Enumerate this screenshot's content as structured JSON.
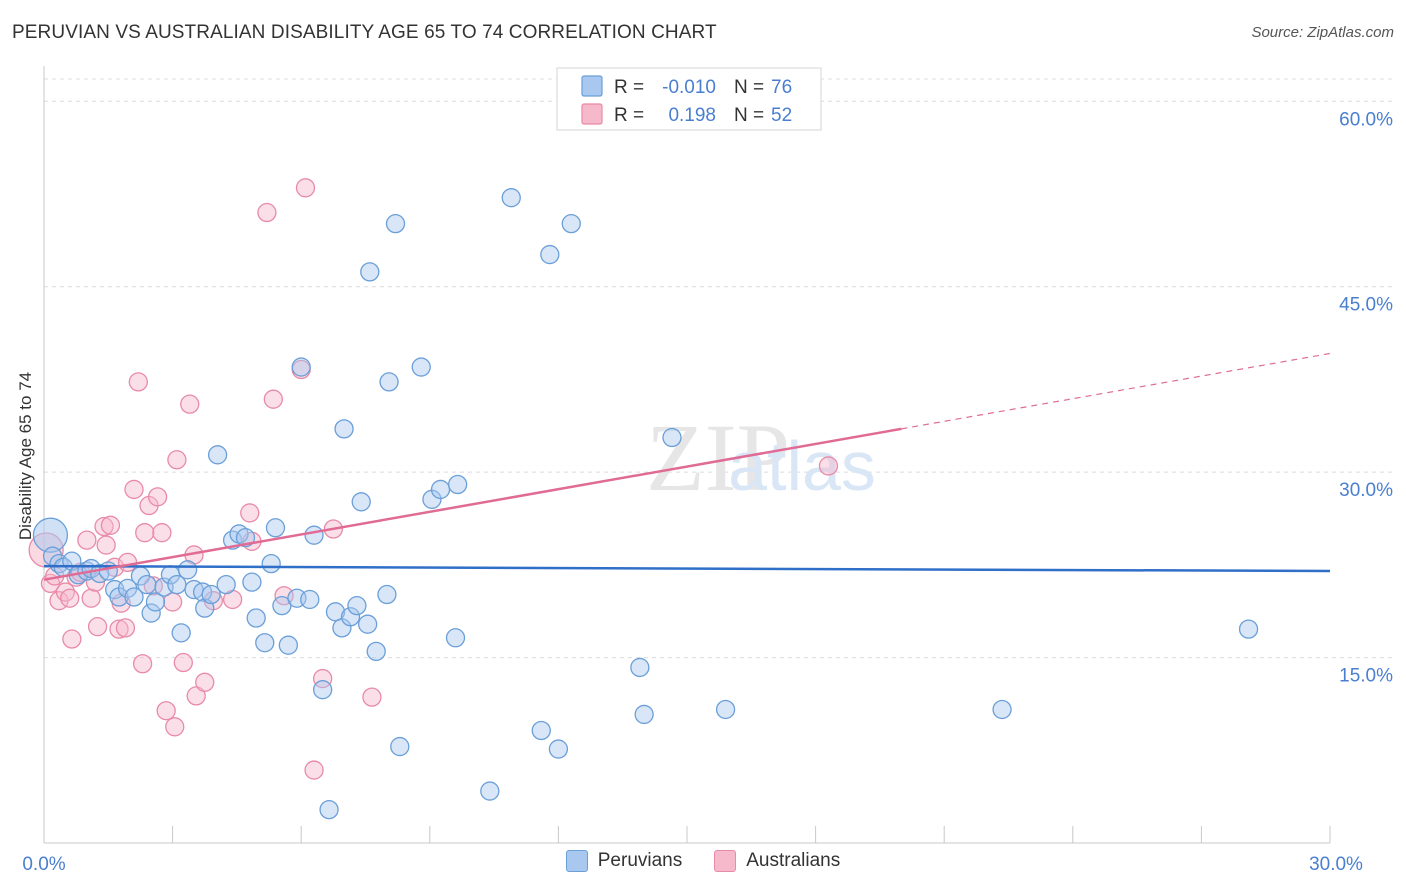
{
  "chart_data": {
    "type": "scatter",
    "title": "PERUVIAN VS AUSTRALIAN DISABILITY AGE 65 TO 74 CORRELATION CHART",
    "source": "Source: ZipAtlas.com",
    "xlabel": "",
    "ylabel": "Disability Age 65 to 74",
    "xlim": [
      0,
      30
    ],
    "ylim": [
      0,
      63.5
    ],
    "x_tick_labels": [
      "0.0%",
      "30.0%"
    ],
    "y_ticks": [
      15,
      30,
      45,
      60
    ],
    "y_tick_labels": [
      "15.0%",
      "30.0%",
      "45.0%",
      "60.0%"
    ],
    "grid": true,
    "watermark": "ZIPatlas",
    "colors": {
      "peruvians_fill": "#a9c8ef",
      "peruvians_stroke": "#6a9fd8",
      "peruvians_line": "#2f6fc8",
      "australians_fill": "#f6b9cc",
      "australians_stroke": "#e88aa8",
      "australians_line": "#e06b95",
      "tick_text": "#4a7fd0",
      "grid": "#dcdcdc"
    },
    "legend": [
      {
        "r_label": "R =",
        "r_value": "-0.010",
        "n_label": "N =",
        "n_value": "76"
      },
      {
        "r_label": "R =",
        "r_value": "0.198",
        "n_label": "N =",
        "n_value": "52"
      }
    ],
    "series": [
      {
        "name": "Peruvians",
        "r": -0.01,
        "n": 76,
        "trend": {
          "x": [
            0,
            30
          ],
          "y": [
            22.4,
            22.0
          ]
        },
        "points": [
          {
            "x": 0.15,
            "y": 24.9,
            "big": true
          },
          {
            "x": 0.2,
            "y": 23.2
          },
          {
            "x": 0.35,
            "y": 22.6
          },
          {
            "x": 0.45,
            "y": 22.3
          },
          {
            "x": 0.65,
            "y": 22.8
          },
          {
            "x": 0.8,
            "y": 21.7
          },
          {
            "x": 1.0,
            "y": 22.0
          },
          {
            "x": 1.1,
            "y": 22.2
          },
          {
            "x": 1.3,
            "y": 21.8
          },
          {
            "x": 1.5,
            "y": 22.0
          },
          {
            "x": 1.65,
            "y": 20.5
          },
          {
            "x": 1.75,
            "y": 19.9
          },
          {
            "x": 1.95,
            "y": 20.6
          },
          {
            "x": 2.1,
            "y": 19.9
          },
          {
            "x": 2.25,
            "y": 21.6
          },
          {
            "x": 2.4,
            "y": 20.9
          },
          {
            "x": 2.5,
            "y": 18.6
          },
          {
            "x": 2.6,
            "y": 19.5
          },
          {
            "x": 2.8,
            "y": 20.7
          },
          {
            "x": 2.95,
            "y": 21.7
          },
          {
            "x": 3.1,
            "y": 20.9
          },
          {
            "x": 3.2,
            "y": 17.0
          },
          {
            "x": 3.35,
            "y": 22.1
          },
          {
            "x": 3.5,
            "y": 20.5
          },
          {
            "x": 3.7,
            "y": 20.3
          },
          {
            "x": 3.75,
            "y": 19.0
          },
          {
            "x": 3.9,
            "y": 20.1
          },
          {
            "x": 4.05,
            "y": 31.4
          },
          {
            "x": 4.25,
            "y": 20.9
          },
          {
            "x": 4.4,
            "y": 24.5
          },
          {
            "x": 4.55,
            "y": 25.0
          },
          {
            "x": 4.7,
            "y": 24.7
          },
          {
            "x": 4.85,
            "y": 21.1
          },
          {
            "x": 4.95,
            "y": 18.2
          },
          {
            "x": 5.15,
            "y": 16.2
          },
          {
            "x": 5.3,
            "y": 22.6
          },
          {
            "x": 5.4,
            "y": 25.5
          },
          {
            "x": 5.55,
            "y": 19.2
          },
          {
            "x": 5.7,
            "y": 16.0
          },
          {
            "x": 5.9,
            "y": 19.8
          },
          {
            "x": 6.0,
            "y": 38.5
          },
          {
            "x": 6.2,
            "y": 19.7
          },
          {
            "x": 6.3,
            "y": 24.9
          },
          {
            "x": 6.5,
            "y": 12.4
          },
          {
            "x": 6.65,
            "y": 2.7
          },
          {
            "x": 6.8,
            "y": 18.7
          },
          {
            "x": 6.95,
            "y": 17.4
          },
          {
            "x": 7.0,
            "y": 33.5
          },
          {
            "x": 7.15,
            "y": 18.3
          },
          {
            "x": 7.3,
            "y": 19.2
          },
          {
            "x": 7.4,
            "y": 27.6
          },
          {
            "x": 7.55,
            "y": 17.7
          },
          {
            "x": 7.75,
            "y": 15.5
          },
          {
            "x": 8.0,
            "y": 20.1
          },
          {
            "x": 8.05,
            "y": 37.3
          },
          {
            "x": 8.3,
            "y": 7.8
          },
          {
            "x": 8.8,
            "y": 38.5
          },
          {
            "x": 9.05,
            "y": 27.8
          },
          {
            "x": 9.25,
            "y": 28.6
          },
          {
            "x": 9.6,
            "y": 16.6
          },
          {
            "x": 9.65,
            "y": 29.0
          },
          {
            "x": 10.4,
            "y": 4.2
          },
          {
            "x": 10.9,
            "y": 52.2
          },
          {
            "x": 11.6,
            "y": 9.1
          },
          {
            "x": 11.8,
            "y": 47.6
          },
          {
            "x": 12.0,
            "y": 7.6
          },
          {
            "x": 12.3,
            "y": 50.1
          },
          {
            "x": 13.9,
            "y": 14.2
          },
          {
            "x": 14.0,
            "y": 10.4
          },
          {
            "x": 14.65,
            "y": 32.8
          },
          {
            "x": 15.9,
            "y": 10.8
          },
          {
            "x": 22.35,
            "y": 10.8
          },
          {
            "x": 28.1,
            "y": 17.3
          },
          {
            "x": 7.6,
            "y": 46.2
          },
          {
            "x": 8.2,
            "y": 50.1
          }
        ]
      },
      {
        "name": "Australians",
        "r": 0.198,
        "n": 52,
        "trend_solid": {
          "x": [
            0,
            20
          ],
          "y": [
            21.3,
            33.5
          ]
        },
        "trend_dashed": {
          "x": [
            20,
            30
          ],
          "y": [
            33.5,
            39.6
          ]
        },
        "points": [
          {
            "x": 0.05,
            "y": 23.7,
            "big": true
          },
          {
            "x": 0.15,
            "y": 21.0
          },
          {
            "x": 0.25,
            "y": 21.6
          },
          {
            "x": 0.35,
            "y": 19.6
          },
          {
            "x": 0.5,
            "y": 20.3
          },
          {
            "x": 0.6,
            "y": 19.8
          },
          {
            "x": 0.65,
            "y": 16.5
          },
          {
            "x": 0.75,
            "y": 21.5
          },
          {
            "x": 0.85,
            "y": 21.9
          },
          {
            "x": 1.0,
            "y": 24.5
          },
          {
            "x": 1.1,
            "y": 19.8
          },
          {
            "x": 1.2,
            "y": 21.1
          },
          {
            "x": 1.25,
            "y": 17.5
          },
          {
            "x": 1.4,
            "y": 25.6
          },
          {
            "x": 1.45,
            "y": 24.1
          },
          {
            "x": 1.55,
            "y": 25.7
          },
          {
            "x": 1.65,
            "y": 22.3
          },
          {
            "x": 1.75,
            "y": 17.3
          },
          {
            "x": 1.8,
            "y": 19.4
          },
          {
            "x": 1.9,
            "y": 17.4
          },
          {
            "x": 1.95,
            "y": 22.7
          },
          {
            "x": 2.1,
            "y": 28.6
          },
          {
            "x": 2.2,
            "y": 37.3
          },
          {
            "x": 2.3,
            "y": 14.5
          },
          {
            "x": 2.35,
            "y": 25.1
          },
          {
            "x": 2.45,
            "y": 27.3
          },
          {
            "x": 2.55,
            "y": 20.8
          },
          {
            "x": 2.65,
            "y": 28.0
          },
          {
            "x": 2.75,
            "y": 25.1
          },
          {
            "x": 2.85,
            "y": 10.7
          },
          {
            "x": 3.0,
            "y": 19.5
          },
          {
            "x": 3.05,
            "y": 9.4
          },
          {
            "x": 3.1,
            "y": 31.0
          },
          {
            "x": 3.25,
            "y": 14.6
          },
          {
            "x": 3.4,
            "y": 35.5
          },
          {
            "x": 3.5,
            "y": 23.3
          },
          {
            "x": 3.55,
            "y": 11.9
          },
          {
            "x": 3.75,
            "y": 13.0
          },
          {
            "x": 3.95,
            "y": 19.6
          },
          {
            "x": 4.4,
            "y": 19.7
          },
          {
            "x": 4.8,
            "y": 26.7
          },
          {
            "x": 4.85,
            "y": 24.4
          },
          {
            "x": 5.2,
            "y": 51.0
          },
          {
            "x": 5.35,
            "y": 35.9
          },
          {
            "x": 5.6,
            "y": 20.0
          },
          {
            "x": 6.0,
            "y": 38.3
          },
          {
            "x": 6.1,
            "y": 53.0
          },
          {
            "x": 6.3,
            "y": 5.9
          },
          {
            "x": 6.5,
            "y": 13.3
          },
          {
            "x": 6.75,
            "y": 25.4
          },
          {
            "x": 7.65,
            "y": 11.8
          },
          {
            "x": 18.3,
            "y": 30.5
          }
        ]
      }
    ]
  },
  "legend_bottom": {
    "peruvians": "Peruvians",
    "australians": "Australians"
  }
}
